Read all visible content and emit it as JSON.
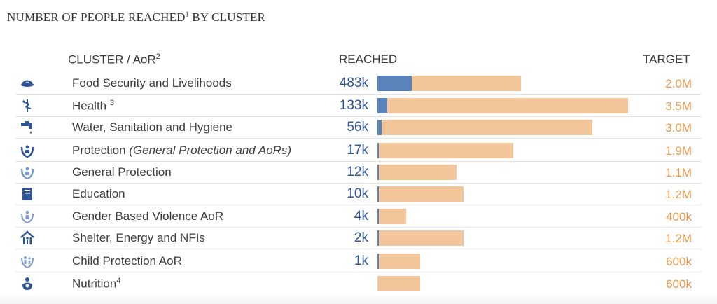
{
  "title": "NUMBER OF PEOPLE REACHED",
  "title_sup": "1",
  "title_suffix": " BY CLUSTER",
  "headers": {
    "cluster": "CLUSTER / AoR",
    "cluster_sup": "2",
    "reached": "REACHED",
    "target": "TARGET"
  },
  "colors": {
    "reached": "#5b84bc",
    "target": "#f2c69a",
    "reached_text": "#2f5597",
    "target_text": "#e79a4e"
  },
  "chart_data": {
    "type": "bar",
    "orientation": "horizontal",
    "title": "NUMBER OF PEOPLE REACHED BY CLUSTER",
    "categories": [
      "Food Security and Livelihoods",
      "Health",
      "Water, Sanitation and Hygiene",
      "Protection (General Protection and AoRs)",
      "General Protection",
      "Education",
      "Gender Based Violence AoR",
      "Shelter, Energy and NFIs",
      "Child Protection AoR",
      "Nutrition"
    ],
    "series": [
      {
        "name": "Reached",
        "values": [
          483000,
          133000,
          56000,
          17000,
          12000,
          10000,
          4000,
          2000,
          1000,
          0
        ]
      },
      {
        "name": "Target",
        "values": [
          2000000,
          3500000,
          3000000,
          1900000,
          1100000,
          1200000,
          400000,
          1200000,
          600000,
          600000
        ]
      }
    ],
    "xlim": [
      0,
      3500000
    ],
    "legend": "none"
  },
  "rows": [
    {
      "icon": "food-security-icon",
      "label": "Food Security and Livelihoods",
      "sup": "",
      "italic": "",
      "reached_label": "483k",
      "target_label": "2.0M"
    },
    {
      "icon": "health-icon",
      "label": "Health ",
      "sup": "3",
      "italic": "",
      "reached_label": "133k",
      "target_label": "3.5M"
    },
    {
      "icon": "water-tap-icon",
      "label": "Water, Sanitation and Hygiene",
      "sup": "",
      "italic": "",
      "reached_label": "56k",
      "target_label": "3.0M"
    },
    {
      "icon": "protection-icon",
      "label": "Protection ",
      "sup": "",
      "italic": "(General Protection and AoRs)",
      "reached_label": "17k",
      "target_label": "1.9M"
    },
    {
      "icon": "general-protection-icon",
      "label": "General Protection",
      "sup": "",
      "italic": "",
      "reached_label": "12k",
      "target_label": "1.1M"
    },
    {
      "icon": "education-icon",
      "label": "Education",
      "sup": "",
      "italic": "",
      "reached_label": "10k",
      "target_label": "1.2M"
    },
    {
      "icon": "gbv-icon",
      "label": "Gender Based Violence AoR",
      "sup": "",
      "italic": "",
      "reached_label": "4k",
      "target_label": "400k"
    },
    {
      "icon": "shelter-icon",
      "label": "Shelter, Energy and NFIs",
      "sup": "",
      "italic": "",
      "reached_label": "2k",
      "target_label": "1.2M"
    },
    {
      "icon": "child-protection-icon",
      "label": "Child Protection AoR",
      "sup": "",
      "italic": "",
      "reached_label": "1k",
      "target_label": "600k"
    },
    {
      "icon": "nutrition-icon",
      "label": "Nutrition",
      "sup": "4",
      "italic": "",
      "reached_label": "",
      "target_label": "600k"
    }
  ]
}
